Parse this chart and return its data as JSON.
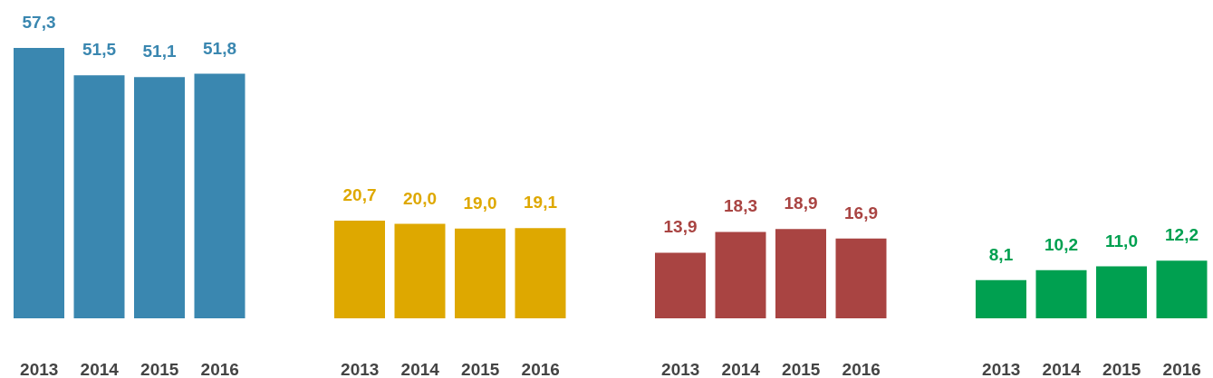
{
  "chart_data": [
    {
      "type": "bar",
      "categories": [
        "2013",
        "2014",
        "2015",
        "2016"
      ],
      "values": [
        57.3,
        51.5,
        51.1,
        51.8
      ],
      "color": "#3a87b0",
      "value_labels": [
        "57,3",
        "51,5",
        "51,1",
        "51,8"
      ],
      "tick_labels": "x",
      "grid": false,
      "legend": false
    },
    {
      "type": "bar",
      "categories": [
        "2013",
        "2014",
        "2015",
        "2016"
      ],
      "values": [
        20.7,
        20.0,
        19.0,
        19.1
      ],
      "color": "#dea800",
      "value_labels": [
        "20,7",
        "20,0",
        "19,0",
        "19,1"
      ],
      "tick_labels": "x",
      "grid": false,
      "legend": false
    },
    {
      "type": "bar",
      "categories": [
        "2013",
        "2014",
        "2015",
        "2016"
      ],
      "values": [
        13.9,
        18.3,
        18.9,
        16.9
      ],
      "color": "#a94442",
      "value_labels": [
        "13,9",
        "18,3",
        "18,9",
        "16,9"
      ],
      "tick_labels": "x",
      "grid": false,
      "legend": false
    },
    {
      "type": "bar",
      "categories": [
        "2013",
        "2014",
        "2015",
        "2016"
      ],
      "values": [
        8.1,
        10.2,
        11.0,
        12.2
      ],
      "color": "#00a050",
      "value_labels": [
        "8,1",
        "10,2",
        "11,0",
        "12,2"
      ],
      "tick_labels": "x",
      "grid": false,
      "legend": false
    }
  ]
}
